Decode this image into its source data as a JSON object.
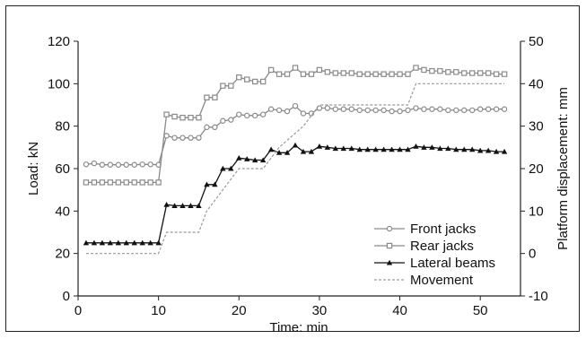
{
  "chart_data": {
    "type": "line",
    "title": "",
    "xlabel": "Time: min",
    "ylabel": "Load: kN",
    "y2label": "Platform displacement: mm",
    "xlim": [
      0,
      55
    ],
    "ylim": [
      0,
      120
    ],
    "y2lim": [
      -10,
      50
    ],
    "xticks": [
      0,
      10,
      20,
      30,
      40,
      50
    ],
    "yticks": [
      0,
      20,
      40,
      60,
      80,
      100,
      120
    ],
    "y2ticks": [
      -10,
      0,
      10,
      20,
      30,
      40,
      50
    ],
    "grid": false,
    "legend_position": "bottom-right",
    "series": [
      {
        "name": "Front jacks",
        "axis": "left",
        "marker": "circle-open",
        "color": "#8a8a8a",
        "x": [
          1,
          2,
          3,
          4,
          5,
          6,
          7,
          8,
          9,
          10,
          11,
          12,
          13,
          14,
          15,
          16,
          17,
          18,
          19,
          20,
          21,
          22,
          23,
          24,
          25,
          26,
          27,
          28,
          29,
          30,
          31,
          32,
          33,
          34,
          35,
          36,
          37,
          38,
          39,
          40,
          41,
          42,
          43,
          44,
          45,
          46,
          47,
          48,
          49,
          50,
          51,
          52,
          53
        ],
        "y": [
          62,
          62.5,
          61.8,
          61.8,
          61.8,
          61.8,
          61.8,
          62,
          62,
          61.8,
          75.5,
          74.5,
          74.5,
          74.5,
          74.5,
          79.5,
          79.5,
          82.5,
          83,
          85.5,
          85,
          85,
          85.5,
          88,
          87.5,
          87,
          89.5,
          86,
          86,
          88.5,
          88.5,
          88,
          88,
          88,
          87.5,
          87.5,
          87.5,
          87.5,
          87,
          87,
          87.5,
          88.5,
          88,
          88,
          88,
          87.5,
          87.5,
          87.5,
          87.5,
          88,
          88,
          88,
          88
        ]
      },
      {
        "name": "Rear jacks",
        "axis": "left",
        "marker": "square-open",
        "color": "#8a8a8a",
        "x": [
          1,
          2,
          3,
          4,
          5,
          6,
          7,
          8,
          9,
          10,
          11,
          12,
          13,
          14,
          15,
          16,
          17,
          18,
          19,
          20,
          21,
          22,
          23,
          24,
          25,
          26,
          27,
          28,
          29,
          30,
          31,
          32,
          33,
          34,
          35,
          36,
          37,
          38,
          39,
          40,
          41,
          42,
          43,
          44,
          45,
          46,
          47,
          48,
          49,
          50,
          51,
          52,
          53
        ],
        "y": [
          53.5,
          53.5,
          53.5,
          53.5,
          53.5,
          53.5,
          53.5,
          53.5,
          53.5,
          53.5,
          85.5,
          84.5,
          84,
          84,
          84,
          93.5,
          93.5,
          99,
          99,
          103,
          102,
          101,
          101,
          106.5,
          104.5,
          104.5,
          107.5,
          104.5,
          104.5,
          106.5,
          105.5,
          105,
          105,
          105,
          104.5,
          104.5,
          104.5,
          104.5,
          104.5,
          104.5,
          104.5,
          107.5,
          106.5,
          106,
          106,
          105.5,
          105.5,
          105,
          105,
          105,
          105,
          104.5,
          104.5
        ]
      },
      {
        "name": "Lateral beams",
        "axis": "left",
        "marker": "triangle-filled",
        "color": "#111111",
        "x": [
          1,
          2,
          3,
          4,
          5,
          6,
          7,
          8,
          9,
          10,
          11,
          12,
          13,
          14,
          15,
          16,
          17,
          18,
          19,
          20,
          21,
          22,
          23,
          24,
          25,
          26,
          27,
          28,
          29,
          30,
          31,
          32,
          33,
          34,
          35,
          36,
          37,
          38,
          39,
          40,
          41,
          42,
          43,
          44,
          45,
          46,
          47,
          48,
          49,
          50,
          51,
          52,
          53
        ],
        "y": [
          25,
          25,
          25,
          25,
          25,
          25,
          25,
          25,
          25,
          25,
          43,
          42.5,
          42.5,
          42.5,
          42.5,
          52.5,
          52.5,
          60,
          60,
          65,
          64.5,
          64,
          64,
          69,
          67.5,
          67.5,
          71,
          68,
          68,
          70.5,
          70,
          69.5,
          69.5,
          69.5,
          69,
          69,
          69,
          69,
          69,
          69,
          69,
          70.5,
          70,
          70,
          69.5,
          69.5,
          69,
          69,
          69,
          68.5,
          68.5,
          68,
          68
        ]
      },
      {
        "name": "Movement",
        "axis": "right",
        "marker": "none",
        "color": "#999999",
        "dashed": true,
        "x": [
          1,
          10,
          11,
          15,
          16,
          18,
          20,
          23,
          25,
          28,
          30,
          41,
          42,
          53
        ],
        "y": [
          0,
          0,
          5,
          5,
          10,
          15,
          20,
          20,
          25,
          30,
          35,
          35,
          40,
          40
        ]
      }
    ]
  }
}
